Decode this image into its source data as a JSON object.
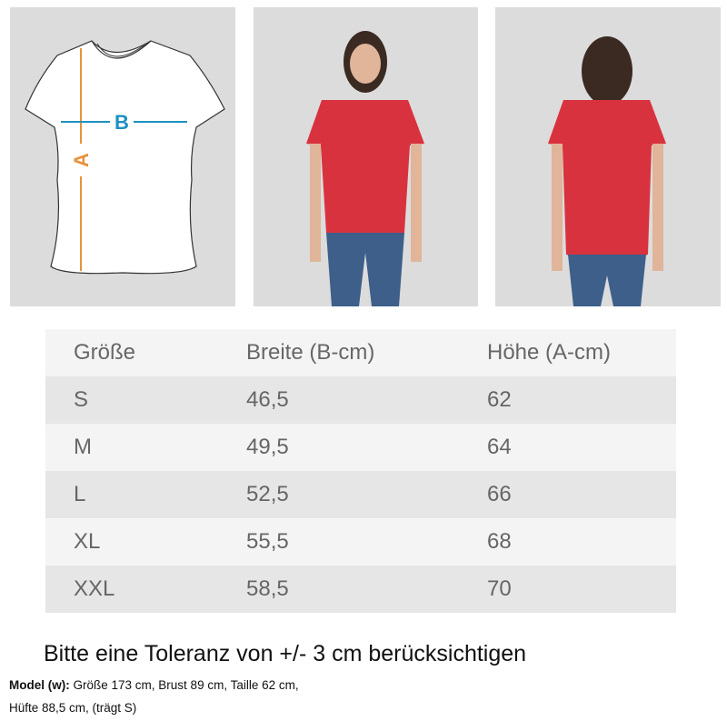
{
  "diagram": {
    "label_a": "A",
    "label_b": "B",
    "color_a": "#e8923a",
    "color_b": "#1e90c0"
  },
  "photos": {
    "shirt_color": "#d9323f",
    "jeans_color": "#3d5f8a"
  },
  "table": {
    "headers": [
      "Größe",
      "Breite (B-cm)",
      "Höhe (A-cm)"
    ],
    "rows": [
      [
        "S",
        "46,5",
        "62"
      ],
      [
        "M",
        "49,5",
        "64"
      ],
      [
        "L",
        "52,5",
        "66"
      ],
      [
        "XL",
        "55,5",
        "68"
      ],
      [
        "XXL",
        "58,5",
        "70"
      ]
    ]
  },
  "tolerance": "Bitte eine Toleranz von +/- 3 cm berücksichtigen",
  "model": {
    "label": "Model (w):",
    "line1": "Größe 173 cm, Brust 89 cm, Taille 62 cm,",
    "line2": "Hüfte 88,5 cm, (trägt S)"
  }
}
